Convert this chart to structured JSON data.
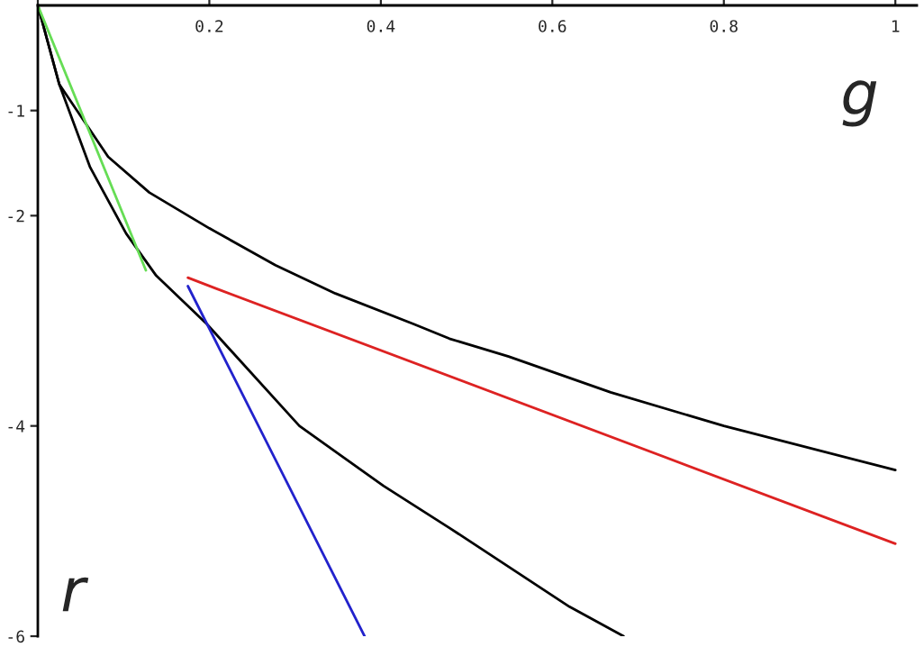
{
  "chart_data": {
    "type": "line",
    "xlabel": "g",
    "ylabel": "r",
    "xlim": [
      0,
      1.025
    ],
    "ylim": [
      -6,
      0
    ],
    "xticks": [
      {
        "value": 0,
        "label": null
      },
      0.2,
      0.4,
      0.6,
      0.8,
      1
    ],
    "yticks": [
      -1,
      -2,
      -4,
      -6
    ],
    "grid": false,
    "legend": false,
    "marker": "none",
    "line_style": "solid",
    "series": [
      {
        "color": "#000000",
        "x": [
          0,
          0.025,
          0.082,
          0.13,
          0.2,
          0.277,
          0.347,
          0.438,
          0.48,
          0.549,
          0.668,
          0.8,
          1.0
        ],
        "values": [
          0,
          -0.75,
          -1.44,
          -1.78,
          -2.12,
          -2.47,
          -2.74,
          -3.03,
          -3.17,
          -3.34,
          -3.68,
          -4.0,
          -4.42
        ]
      },
      {
        "color": "#000000",
        "x": [
          0,
          0.025,
          0.061,
          0.103,
          0.138,
          0.197,
          0.305,
          0.403,
          0.48,
          0.62,
          0.683
        ],
        "values": [
          0,
          -0.75,
          -1.54,
          -2.17,
          -2.57,
          -3.03,
          -4.0,
          -4.57,
          -4.97,
          -5.72,
          -6.0
        ]
      },
      {
        "color": "#66dd55",
        "x": [
          0,
          0.126
        ],
        "values": [
          0,
          -2.52
        ]
      },
      {
        "color": "#dd2222",
        "x": [
          0.175,
          0.207,
          1.0
        ],
        "values": [
          -2.59,
          -2.69,
          -5.12
        ]
      },
      {
        "color": "#2222cc",
        "x": [
          0.175,
          0.381
        ],
        "values": [
          -2.67,
          -6.0
        ]
      }
    ]
  }
}
